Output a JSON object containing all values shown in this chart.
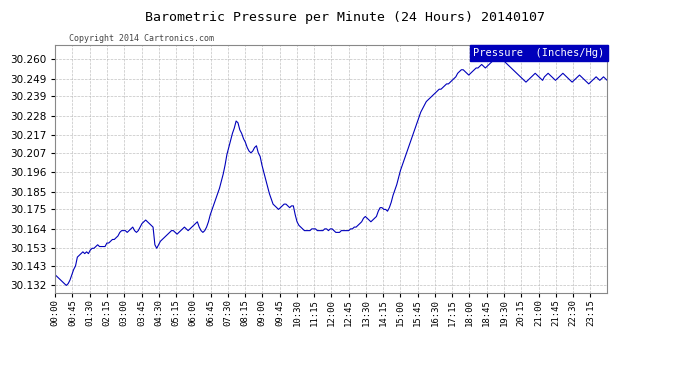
{
  "title": "Barometric Pressure per Minute (24 Hours) 20140107",
  "copyright": "Copyright 2014 Cartronics.com",
  "legend_label": "Pressure  (Inches/Hg)",
  "line_color": "#0000bb",
  "background_color": "#ffffff",
  "grid_color": "#bbbbbb",
  "legend_bg": "#0000bb",
  "legend_text_color": "#ffffff",
  "ylim": [
    30.128,
    30.268
  ],
  "yticks": [
    30.132,
    30.143,
    30.153,
    30.164,
    30.175,
    30.185,
    30.196,
    30.207,
    30.217,
    30.228,
    30.239,
    30.249,
    30.26
  ],
  "xtick_labels": [
    "00:00",
    "00:45",
    "01:30",
    "02:15",
    "03:00",
    "03:45",
    "04:30",
    "05:15",
    "06:00",
    "06:45",
    "07:30",
    "08:15",
    "09:00",
    "09:45",
    "10:30",
    "11:15",
    "12:00",
    "12:45",
    "13:30",
    "14:15",
    "15:00",
    "15:45",
    "16:30",
    "17:15",
    "18:00",
    "18:45",
    "19:30",
    "20:15",
    "21:00",
    "21:45",
    "22:30",
    "23:15"
  ],
  "pressure_values": [
    30.138,
    30.137,
    30.136,
    30.135,
    30.134,
    30.133,
    30.132,
    30.133,
    30.135,
    30.138,
    30.141,
    30.143,
    30.148,
    30.149,
    30.15,
    30.151,
    30.15,
    30.151,
    30.15,
    30.152,
    30.153,
    30.153,
    30.154,
    30.155,
    30.154,
    30.154,
    30.154,
    30.154,
    30.156,
    30.156,
    30.157,
    30.158,
    30.158,
    30.159,
    30.16,
    30.162,
    30.163,
    30.163,
    30.163,
    30.162,
    30.163,
    30.164,
    30.165,
    30.163,
    30.162,
    30.163,
    30.165,
    30.167,
    30.168,
    30.169,
    30.168,
    30.167,
    30.166,
    30.165,
    30.155,
    30.153,
    30.155,
    30.157,
    30.158,
    30.159,
    30.16,
    30.161,
    30.162,
    30.163,
    30.163,
    30.162,
    30.161,
    30.162,
    30.163,
    30.164,
    30.165,
    30.164,
    30.163,
    30.164,
    30.165,
    30.166,
    30.167,
    30.168,
    30.165,
    30.163,
    30.162,
    30.163,
    30.165,
    30.168,
    30.172,
    30.175,
    30.178,
    30.181,
    30.184,
    30.187,
    30.191,
    30.195,
    30.2,
    30.206,
    30.21,
    30.214,
    30.218,
    30.221,
    30.225,
    30.224,
    30.22,
    30.218,
    30.215,
    30.213,
    30.21,
    30.208,
    30.207,
    30.208,
    30.21,
    30.211,
    30.207,
    30.205,
    30.2,
    30.196,
    30.192,
    30.188,
    30.184,
    30.181,
    30.178,
    30.177,
    30.176,
    30.175,
    30.176,
    30.177,
    30.178,
    30.178,
    30.177,
    30.176,
    30.177,
    30.177,
    30.172,
    30.168,
    30.166,
    30.165,
    30.164,
    30.163,
    30.163,
    30.163,
    30.163,
    30.164,
    30.164,
    30.164,
    30.163,
    30.163,
    30.163,
    30.163,
    30.164,
    30.164,
    30.163,
    30.164,
    30.164,
    30.163,
    30.162,
    30.162,
    30.162,
    30.163,
    30.163,
    30.163,
    30.163,
    30.163,
    30.164,
    30.164,
    30.165,
    30.165,
    30.166,
    30.167,
    30.168,
    30.17,
    30.171,
    30.17,
    30.169,
    30.168,
    30.169,
    30.17,
    30.171,
    30.174,
    30.176,
    30.176,
    30.175,
    30.175,
    30.174,
    30.176,
    30.179,
    30.183,
    30.186,
    30.189,
    30.193,
    30.197,
    30.2,
    30.203,
    30.206,
    30.209,
    30.212,
    30.215,
    30.218,
    30.221,
    30.224,
    30.227,
    30.23,
    30.232,
    30.234,
    30.236,
    30.237,
    30.238,
    30.239,
    30.24,
    30.241,
    30.242,
    30.243,
    30.243,
    30.244,
    30.245,
    30.246,
    30.246,
    30.247,
    30.248,
    30.249,
    30.25,
    30.252,
    30.253,
    30.254,
    30.254,
    30.253,
    30.252,
    30.251,
    30.252,
    30.253,
    30.254,
    30.255,
    30.255,
    30.256,
    30.257,
    30.256,
    30.255,
    30.256,
    30.257,
    30.258,
    30.259,
    30.26,
    30.261,
    30.262,
    30.261,
    30.26,
    30.259,
    30.258,
    30.257,
    30.256,
    30.255,
    30.254,
    30.253,
    30.252,
    30.251,
    30.25,
    30.249,
    30.248,
    30.247,
    30.248,
    30.249,
    30.25,
    30.251,
    30.252,
    30.251,
    30.25,
    30.249,
    30.248,
    30.25,
    30.251,
    30.252,
    30.251,
    30.25,
    30.249,
    30.248,
    30.249,
    30.25,
    30.251,
    30.252,
    30.251,
    30.25,
    30.249,
    30.248,
    30.247,
    30.248,
    30.249,
    30.25,
    30.251,
    30.25,
    30.249,
    30.248,
    30.247,
    30.246,
    30.247,
    30.248,
    30.249,
    30.25,
    30.249,
    30.248,
    30.249,
    30.25,
    30.249,
    30.248
  ]
}
